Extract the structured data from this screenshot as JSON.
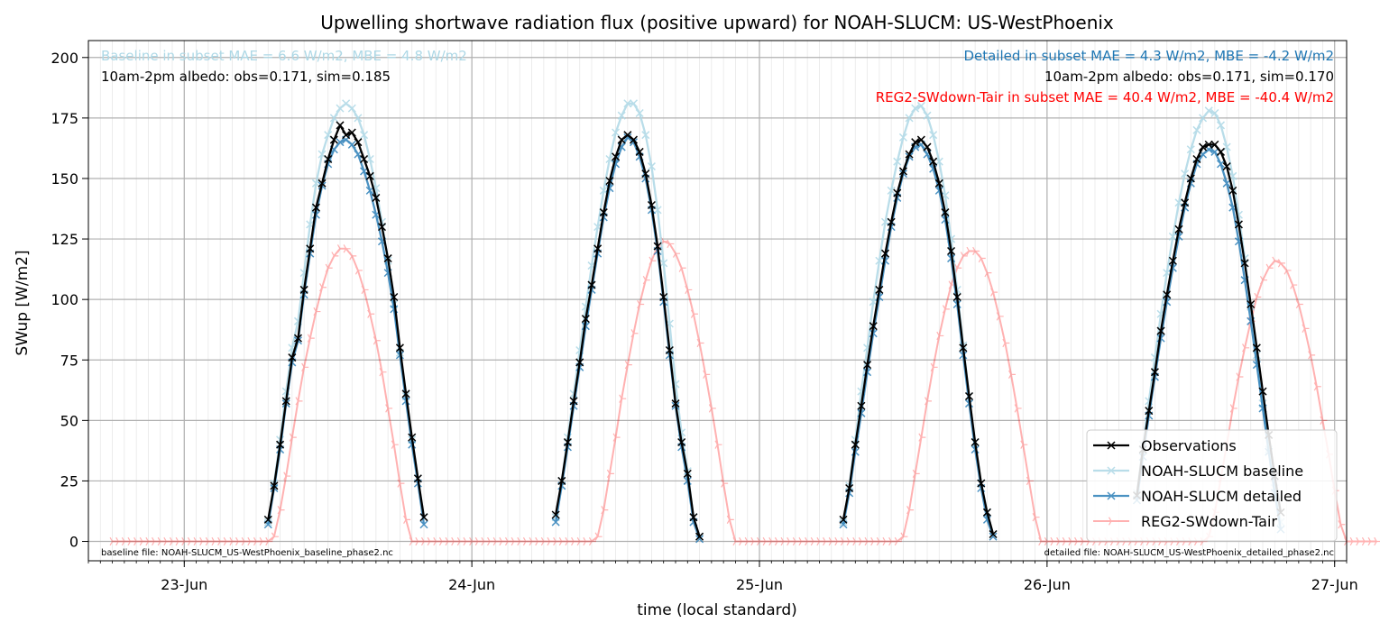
{
  "chart_data": {
    "type": "line",
    "title": "Upwelling shortwave radiation flux (positive upward) for NOAH-SLUCM: US-WestPhoenix",
    "xlabel": "time (local standard)",
    "ylabel": "SWup [W/m2]",
    "xlim": [
      "2017-06-22T16:00",
      "2017-06-27T01:00"
    ],
    "ylim": [
      -8,
      207
    ],
    "grid": true,
    "legend_position": "lower right",
    "x_ticks": [
      {
        "label": "23-Jun",
        "date": "2017-06-23T00:00"
      },
      {
        "label": "24-Jun",
        "date": "2017-06-24T00:00"
      },
      {
        "label": "25-Jun",
        "date": "2017-06-25T00:00"
      },
      {
        "label": "26-Jun",
        "date": "2017-06-26T00:00"
      },
      {
        "label": "27-Jun",
        "date": "2017-06-27T00:00"
      }
    ],
    "y_ticks": [
      0,
      25,
      50,
      75,
      100,
      125,
      150,
      175,
      200
    ],
    "annotations": {
      "baseline_stats": "Baseline in subset MAE = 6.6 W/m2, MBE = 4.8 W/m2",
      "baseline_albedo": "10am-2pm albedo: obs=0.171, sim=0.185",
      "detailed_stats": "Detailed in subset MAE = 4.3 W/m2, MBE = -4.2 W/m2",
      "detailed_albedo": "10am-2pm albedo: obs=0.171, sim=0.170",
      "reg2_stats": "REG2-SWdown-Tair in subset MAE = 40.4 W/m2, MBE = -40.4 W/m2",
      "baseline_file": "baseline file: NOAH-SLUCM_US-WestPhoenix_baseline_phase2.nc",
      "detailed_file": "detailed file: NOAH-SLUCM_US-WestPhoenix_detailed_phase2.nc"
    },
    "annotation_colors": {
      "baseline": "#add8e6",
      "detailed": "#1f77b4",
      "reg2": "#ff0000",
      "default": "#000000"
    },
    "series": [
      {
        "name": "Observations",
        "color": "#000000",
        "marker": "x",
        "segments": [
          {
            "start": "2017-06-23T07:00",
            "step_minutes": 30,
            "values": [
              9,
              23,
              40,
              58,
              76,
              84,
              104,
              121,
              138,
              148,
              158,
              166,
              172,
              168,
              169,
              165,
              158,
              151,
              142,
              130,
              117,
              101,
              80,
              61,
              43,
              26,
              10
            ]
          },
          {
            "start": "2017-06-24T07:00",
            "step_minutes": 30,
            "values": [
              11,
              25,
              41,
              58,
              74,
              92,
              106,
              121,
              136,
              149,
              159,
              166,
              168,
              166,
              161,
              152,
              139,
              122,
              101,
              79,
              57,
              41,
              28,
              10,
              2
            ]
          },
          {
            "start": "2017-06-25T07:00",
            "step_minutes": 30,
            "values": [
              9,
              22,
              40,
              56,
              73,
              89,
              104,
              119,
              132,
              144,
              153,
              160,
              165,
              166,
              163,
              157,
              148,
              136,
              120,
              101,
              80,
              60,
              41,
              24,
              12,
              3
            ]
          },
          {
            "start": "2017-06-26T07:30",
            "step_minutes": 30,
            "values": [
              19,
              38,
              54,
              70,
              87,
              102,
              116,
              129,
              140,
              150,
              158,
              163,
              164,
              164,
              161,
              155,
              145,
              131,
              115,
              98,
              80,
              62,
              44,
              27,
              12
            ]
          }
        ]
      },
      {
        "name": "NOAH-SLUCM baseline",
        "color": "#add8e6",
        "marker": "x",
        "segments": [
          {
            "start": "2017-06-23T07:00",
            "step_minutes": 30,
            "values": [
              8,
              24,
              42,
              62,
              80,
              91,
              111,
              131,
              148,
              160,
              168,
              175,
              179,
              181,
              179,
              175,
              168,
              158,
              146,
              132,
              116,
              98,
              78,
              60,
              42,
              26,
              10
            ]
          },
          {
            "start": "2017-06-24T07:00",
            "step_minutes": 30,
            "values": [
              10,
              25,
              43,
              61,
              79,
              97,
              114,
              130,
              145,
              158,
              169,
              176,
              181,
              181,
              177,
              168,
              155,
              137,
              115,
              90,
              65,
              45,
              29,
              10,
              2
            ]
          },
          {
            "start": "2017-06-25T07:00",
            "step_minutes": 30,
            "values": [
              8,
              23,
              42,
              62,
              80,
              99,
              116,
              132,
              145,
              157,
              167,
              175,
              179,
              180,
              176,
              168,
              157,
              143,
              125,
              104,
              81,
              60,
              41,
              24,
              12,
              3
            ]
          },
          {
            "start": "2017-06-26T07:30",
            "step_minutes": 30,
            "values": [
              20,
              40,
              58,
              76,
              94,
              111,
              126,
              140,
              152,
              162,
              170,
              175,
              178,
              177,
              172,
              163,
              151,
              135,
              117,
              97,
              77,
              57,
              38,
              22,
              8
            ]
          }
        ]
      },
      {
        "name": "NOAH-SLUCM detailed",
        "color": "#1f77b4",
        "marker": "x",
        "segments": [
          {
            "start": "2017-06-23T07:00",
            "step_minutes": 30,
            "values": [
              7,
              22,
              38,
              57,
              74,
              83,
              102,
              119,
              135,
              147,
              156,
              162,
              165,
              166,
              164,
              160,
              153,
              145,
              135,
              124,
              111,
              96,
              77,
              58,
              40,
              24,
              7
            ]
          },
          {
            "start": "2017-06-24T07:00",
            "step_minutes": 30,
            "values": [
              8,
              23,
              39,
              56,
              72,
              89,
              104,
              119,
              134,
              146,
              156,
              163,
              167,
              165,
              159,
              150,
              137,
              120,
              99,
              77,
              56,
              39,
              25,
              8,
              1
            ]
          },
          {
            "start": "2017-06-25T07:00",
            "step_minutes": 30,
            "values": [
              7,
              20,
              37,
              53,
              70,
              86,
              101,
              116,
              130,
              142,
              152,
              159,
              163,
              164,
              160,
              154,
              145,
              133,
              117,
              98,
              77,
              57,
              38,
              22,
              9,
              2
            ]
          },
          {
            "start": "2017-06-26T07:30",
            "step_minutes": 30,
            "values": [
              17,
              35,
              52,
              68,
              84,
              99,
              113,
              126,
              138,
              148,
              156,
              160,
              162,
              161,
              156,
              148,
              138,
              124,
              108,
              91,
              73,
              55,
              37,
              20,
              5
            ]
          }
        ]
      },
      {
        "name": "REG2-SWdown-Tair",
        "color": "#ff0000",
        "marker": "4",
        "segments": [
          {
            "start": "2017-06-22T18:00",
            "step_minutes": 30,
            "values": [
              0,
              0,
              0,
              0,
              0,
              0,
              0,
              0,
              0,
              0,
              0,
              0,
              0,
              0,
              0,
              0,
              0,
              0,
              0,
              0,
              0,
              0,
              0,
              0,
              0,
              0,
              0,
              2,
              13,
              27,
              43,
              58,
              72,
              84,
              95,
              105,
              113,
              118,
              121,
              121,
              118,
              112,
              104,
              94,
              83,
              70,
              55,
              40,
              24,
              9,
              0,
              0,
              0,
              0,
              0,
              0,
              0,
              0,
              0,
              0,
              0,
              0,
              0,
              0,
              0,
              0,
              0,
              0,
              0,
              0,
              0,
              0,
              0,
              0,
              0,
              0,
              0,
              0,
              0,
              0,
              0,
              2,
              13,
              28,
              43,
              59,
              73,
              86,
              98,
              108,
              116,
              122,
              124,
              123,
              119,
              113,
              104,
              94,
              82,
              69,
              55,
              40,
              24,
              9,
              0,
              0,
              0,
              0,
              0,
              0,
              0,
              0,
              0,
              0,
              0,
              0,
              0,
              0,
              0,
              0,
              0,
              0,
              0,
              0,
              0,
              0,
              0,
              0,
              0,
              0,
              0,
              0,
              2,
              13,
              28,
              43,
              58,
              72,
              85,
              96,
              106,
              113,
              118,
              120,
              120,
              117,
              111,
              103,
              93,
              82,
              69,
              55,
              40,
              25,
              10,
              0,
              0,
              0,
              0,
              0,
              0,
              0,
              0,
              0,
              0,
              0,
              0,
              0,
              0,
              0,
              0,
              0,
              0,
              0,
              0,
              0,
              0,
              0,
              0,
              0,
              0,
              0,
              0,
              2,
              12,
              26,
              40,
              55,
              68,
              80,
              91,
              101,
              108,
              113,
              116,
              115,
              112,
              106,
              98,
              88,
              77,
              64,
              50,
              36,
              21,
              7,
              0,
              0,
              0,
              0,
              0,
              0
            ]
          }
        ]
      }
    ]
  }
}
